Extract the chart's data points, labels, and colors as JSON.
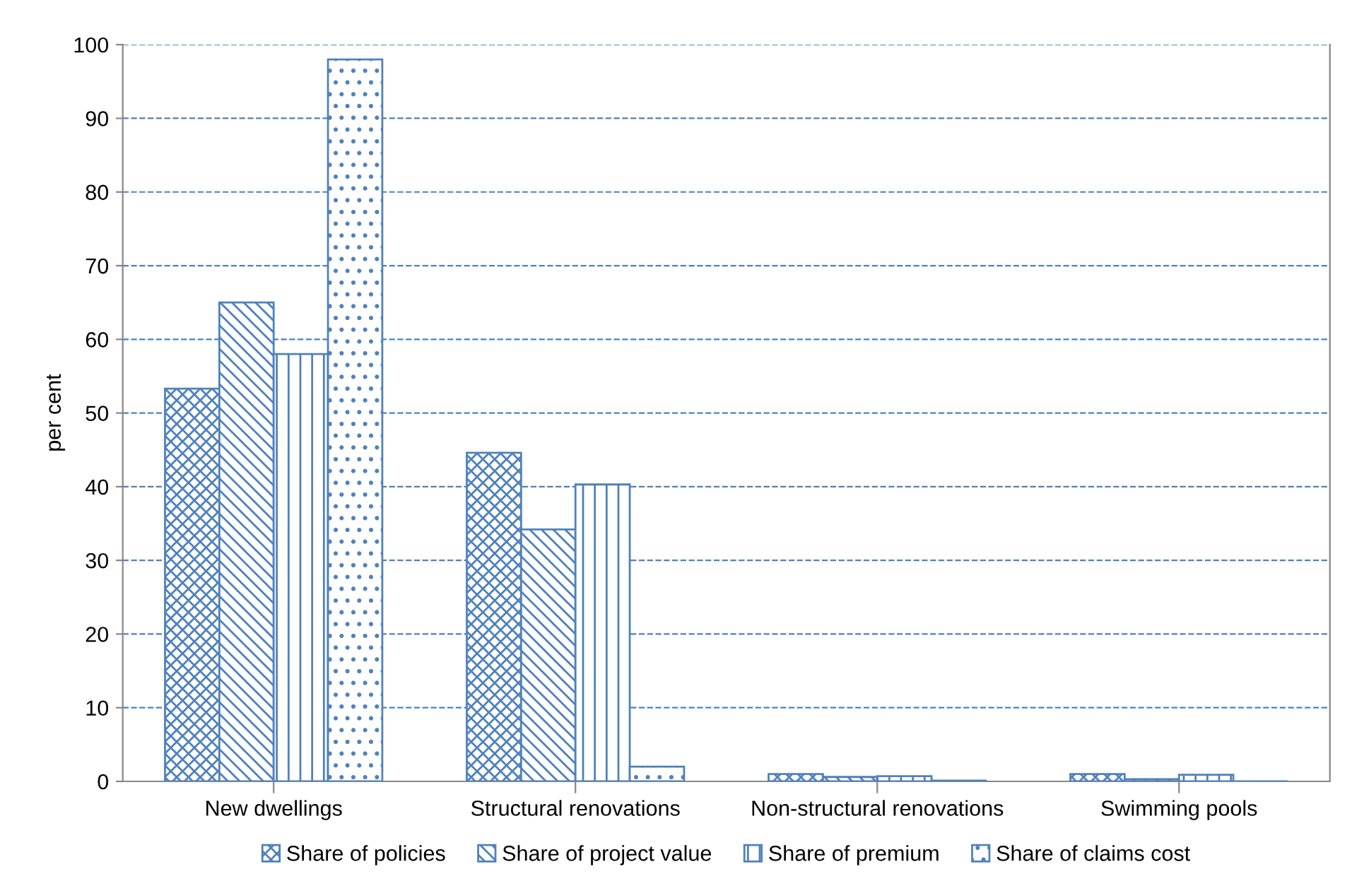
{
  "chart_data": {
    "type": "bar",
    "ylabel": "per cent",
    "categories": [
      "New dwellings",
      "Structural renovations",
      "Non-structural renovations",
      "Swimming pools"
    ],
    "series": [
      {
        "name": "Share of policies",
        "color": "#4f81bd",
        "values": [
          53.3,
          44.6,
          1.0,
          1.0
        ]
      },
      {
        "name": "Share of project value",
        "color": "#4f81bd",
        "values": [
          65.0,
          34.2,
          0.6,
          0.3
        ]
      },
      {
        "name": "Share of premium",
        "color": "#4f81bd",
        "values": [
          58.0,
          40.3,
          0.7,
          0.9
        ]
      },
      {
        "name": "Share of claims cost",
        "color": "#4f81bd",
        "values": [
          98.0,
          2.0,
          0.1,
          0.0
        ]
      }
    ],
    "ylim": [
      0,
      100
    ],
    "yticks": [
      0,
      10,
      20,
      30,
      40,
      50,
      60,
      70,
      80,
      90,
      100
    ],
    "grid": "y",
    "legend": "bottom"
  }
}
